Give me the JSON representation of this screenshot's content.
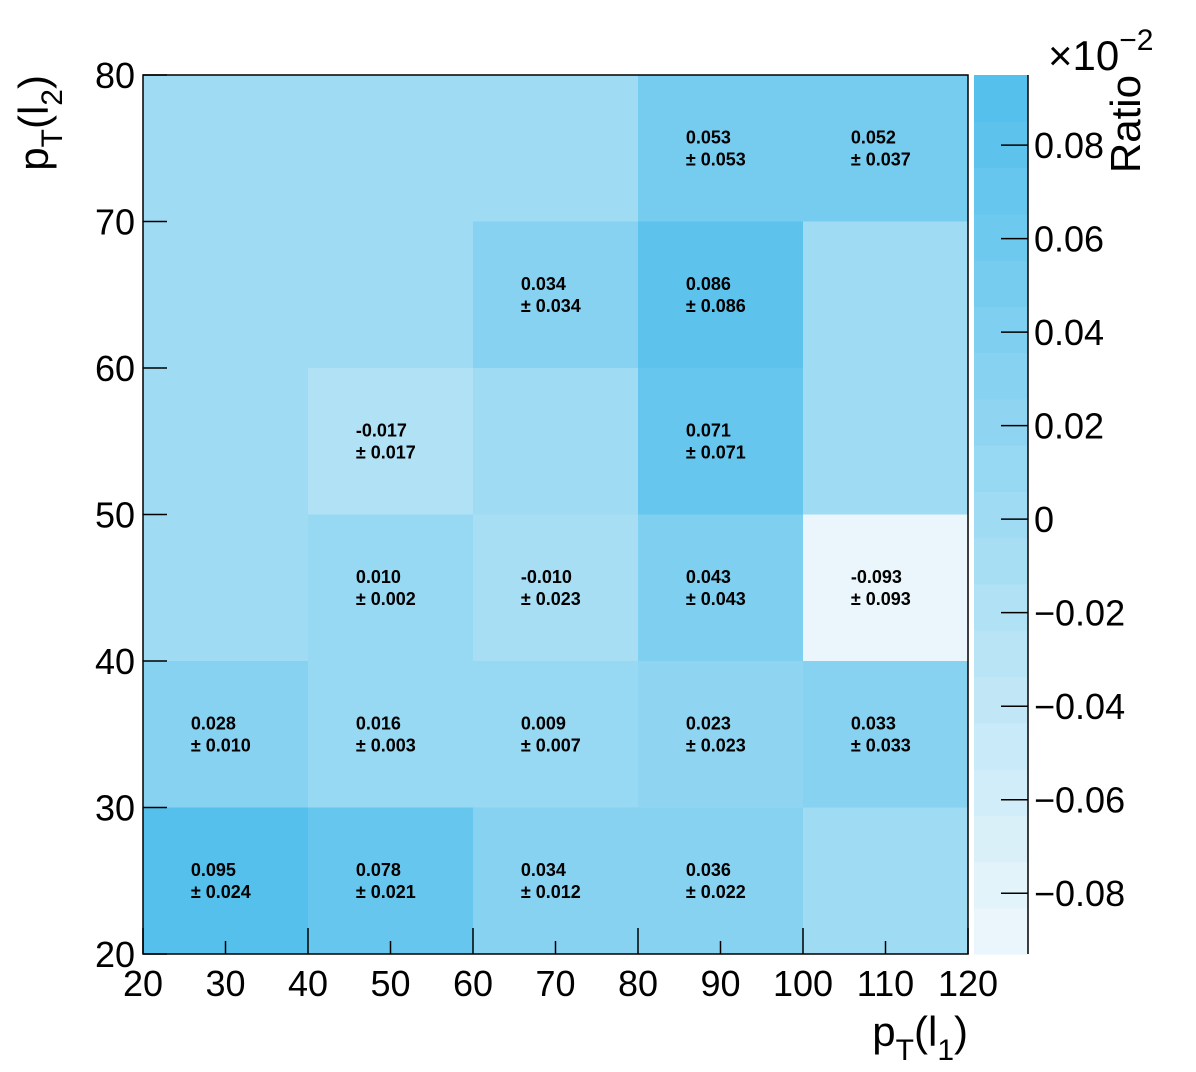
{
  "chart_data": {
    "type": "heatmap",
    "x_edges": [
      20,
      40,
      60,
      80,
      100,
      120
    ],
    "y_edges": [
      20,
      30,
      40,
      50,
      60,
      70,
      80
    ],
    "xlim": [
      20,
      120
    ],
    "ylim": [
      20,
      80
    ],
    "x_ticks": [
      "20",
      "30",
      "40",
      "50",
      "60",
      "70",
      "80",
      "90",
      "100",
      "110",
      "120"
    ],
    "y_ticks": [
      "20",
      "30",
      "40",
      "50",
      "60",
      "70",
      "80"
    ],
    "xlabel_main": "p",
    "xlabel_sub": "T",
    "xlabel_arg": "(l",
    "xlabel_argsub": "1",
    "xlabel_close": ")",
    "ylabel_main": "p",
    "ylabel_sub": "T",
    "ylabel_arg": "(l",
    "ylabel_argsub": "2",
    "ylabel_close": ")",
    "colorbar_label": "Ratio",
    "colorbar_multiplier": "×10",
    "colorbar_exponent": "−2",
    "colorbar_range": [
      -0.093,
      0.095
    ],
    "colorbar_ticks": [
      "0.08",
      "0.06",
      "0.04",
      "0.02",
      "0",
      "−0.02",
      "−0.04",
      "−0.06",
      "−0.08"
    ],
    "colorbar_tick_values": [
      0.08,
      0.06,
      0.04,
      0.02,
      0,
      -0.02,
      -0.04,
      -0.06,
      -0.08
    ],
    "colors": {
      "low": "#eaf6fb",
      "high": "#55c0ec"
    },
    "cells": [
      {
        "x": [
          20,
          40
        ],
        "y": [
          20,
          30
        ],
        "value": 0.095,
        "label": "0.095",
        "error": "± 0.024"
      },
      {
        "x": [
          40,
          60
        ],
        "y": [
          20,
          30
        ],
        "value": 0.078,
        "label": "0.078",
        "error": "± 0.021"
      },
      {
        "x": [
          60,
          80
        ],
        "y": [
          20,
          30
        ],
        "value": 0.034,
        "label": "0.034",
        "error": "± 0.012"
      },
      {
        "x": [
          80,
          100
        ],
        "y": [
          20,
          30
        ],
        "value": 0.036,
        "label": "0.036",
        "error": "± 0.022"
      },
      {
        "x": [
          100,
          120
        ],
        "y": [
          20,
          30
        ],
        "value": 0.0,
        "label": "",
        "error": ""
      },
      {
        "x": [
          20,
          40
        ],
        "y": [
          30,
          40
        ],
        "value": 0.028,
        "label": "0.028",
        "error": "± 0.010"
      },
      {
        "x": [
          40,
          60
        ],
        "y": [
          30,
          40
        ],
        "value": 0.016,
        "label": "0.016",
        "error": "± 0.003"
      },
      {
        "x": [
          60,
          80
        ],
        "y": [
          30,
          40
        ],
        "value": 0.009,
        "label": "0.009",
        "error": "± 0.007"
      },
      {
        "x": [
          80,
          100
        ],
        "y": [
          30,
          40
        ],
        "value": 0.023,
        "label": "0.023",
        "error": "± 0.023"
      },
      {
        "x": [
          100,
          120
        ],
        "y": [
          30,
          40
        ],
        "value": 0.033,
        "label": "0.033",
        "error": "± 0.033"
      },
      {
        "x": [
          20,
          40
        ],
        "y": [
          40,
          50
        ],
        "value": 0.0,
        "label": "",
        "error": ""
      },
      {
        "x": [
          40,
          60
        ],
        "y": [
          40,
          50
        ],
        "value": 0.01,
        "label": "0.010",
        "error": "± 0.002"
      },
      {
        "x": [
          60,
          80
        ],
        "y": [
          40,
          50
        ],
        "value": -0.01,
        "label": "-0.010",
        "error": "± 0.023"
      },
      {
        "x": [
          80,
          100
        ],
        "y": [
          40,
          50
        ],
        "value": 0.043,
        "label": "0.043",
        "error": "± 0.043"
      },
      {
        "x": [
          100,
          120
        ],
        "y": [
          40,
          50
        ],
        "value": -0.093,
        "label": "-0.093",
        "error": "± 0.093"
      },
      {
        "x": [
          20,
          40
        ],
        "y": [
          50,
          60
        ],
        "value": 0.0,
        "label": "",
        "error": ""
      },
      {
        "x": [
          40,
          60
        ],
        "y": [
          50,
          60
        ],
        "value": -0.017,
        "label": "-0.017",
        "error": "± 0.017"
      },
      {
        "x": [
          60,
          80
        ],
        "y": [
          50,
          60
        ],
        "value": 0.0,
        "label": "",
        "error": ""
      },
      {
        "x": [
          80,
          100
        ],
        "y": [
          50,
          60
        ],
        "value": 0.071,
        "label": "0.071",
        "error": "± 0.071"
      },
      {
        "x": [
          100,
          120
        ],
        "y": [
          50,
          60
        ],
        "value": 0.0,
        "label": "",
        "error": ""
      },
      {
        "x": [
          20,
          40
        ],
        "y": [
          60,
          70
        ],
        "value": 0.0,
        "label": "",
        "error": ""
      },
      {
        "x": [
          40,
          60
        ],
        "y": [
          60,
          70
        ],
        "value": 0.0,
        "label": "",
        "error": ""
      },
      {
        "x": [
          60,
          80
        ],
        "y": [
          60,
          70
        ],
        "value": 0.034,
        "label": "0.034",
        "error": "± 0.034"
      },
      {
        "x": [
          80,
          100
        ],
        "y": [
          60,
          70
        ],
        "value": 0.086,
        "label": "0.086",
        "error": "± 0.086"
      },
      {
        "x": [
          100,
          120
        ],
        "y": [
          60,
          70
        ],
        "value": 0.0,
        "label": "",
        "error": ""
      },
      {
        "x": [
          20,
          40
        ],
        "y": [
          70,
          80
        ],
        "value": 0.0,
        "label": "",
        "error": ""
      },
      {
        "x": [
          40,
          60
        ],
        "y": [
          70,
          80
        ],
        "value": 0.0,
        "label": "",
        "error": ""
      },
      {
        "x": [
          60,
          80
        ],
        "y": [
          70,
          80
        ],
        "value": 0.0,
        "label": "",
        "error": ""
      },
      {
        "x": [
          80,
          100
        ],
        "y": [
          70,
          80
        ],
        "value": 0.053,
        "label": "0.053",
        "error": "± 0.053"
      },
      {
        "x": [
          100,
          120
        ],
        "y": [
          70,
          80
        ],
        "value": 0.052,
        "label": "0.052",
        "error": "± 0.037"
      }
    ]
  }
}
